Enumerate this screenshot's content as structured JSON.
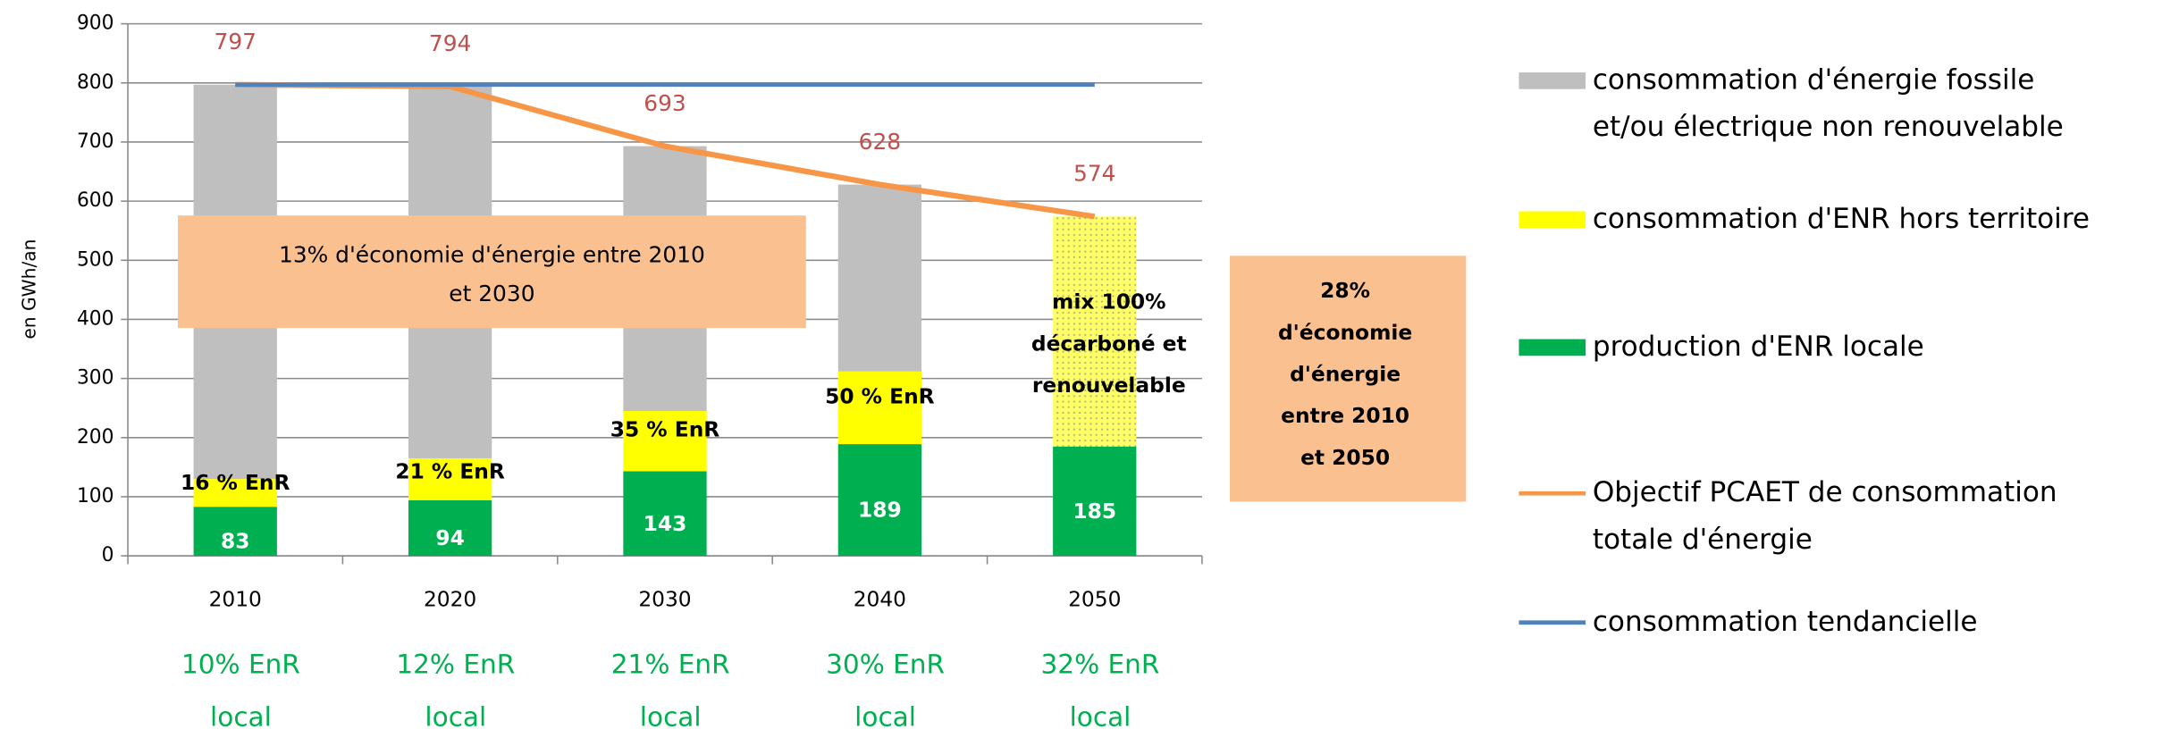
{
  "chart_data": {
    "type": "bar",
    "stacked": true,
    "y_label": "en GWh/an",
    "categories": [
      "2010",
      "2020",
      "2030",
      "2040",
      "2050"
    ],
    "ylim": [
      0,
      900
    ],
    "yticks": [
      0,
      100,
      200,
      300,
      400,
      500,
      600,
      700,
      800,
      900
    ],
    "grid": true,
    "hatched_categories": [
      "2050"
    ],
    "series": [
      {
        "name": "consommation d'énergie fossile et/ou électrique non renouvelable",
        "type": "bar",
        "color": "#bfbfbf",
        "values": [
          667,
          629,
          448,
          316,
          0
        ]
      },
      {
        "name": "consommation d'ENR hors territoire",
        "type": "bar",
        "color": "#ffff00",
        "values": [
          47,
          71,
          102,
          123,
          389
        ]
      },
      {
        "name": "production d'ENR locale",
        "type": "bar",
        "color": "#00b050",
        "values": [
          83,
          94,
          143,
          189,
          185
        ]
      },
      {
        "name": "Objectif PCAET de consommation totale d'énergie",
        "type": "line",
        "color": "#f79646",
        "values": [
          797,
          794,
          693,
          628,
          574
        ]
      },
      {
        "name": "consommation tendancielle",
        "type": "line",
        "color": "#4f81bd",
        "values": [
          797,
          797,
          797,
          797,
          797
        ]
      }
    ],
    "enr_labels": [
      "16 % EnR",
      "21 % EnR",
      "35 % EnR",
      "50 % EnR"
    ],
    "local_labels": [
      [
        "10% EnR",
        "local"
      ],
      [
        "12% EnR",
        "local"
      ],
      [
        "21% EnR",
        "local"
      ],
      [
        "30% EnR",
        "local"
      ],
      [
        "32% EnR",
        "local"
      ]
    ],
    "annotations": [
      {
        "lines": [
          "13% d'économie  d'énergie  entre  2010",
          "et 2030"
        ]
      },
      {
        "lines": [
          "mix 100%",
          "décarboné  et",
          "renouvelable"
        ]
      },
      {
        "lines": [
          "28%",
          "d'économie",
          "d'énergie",
          "entre  2010",
          "et 2050"
        ]
      }
    ]
  }
}
